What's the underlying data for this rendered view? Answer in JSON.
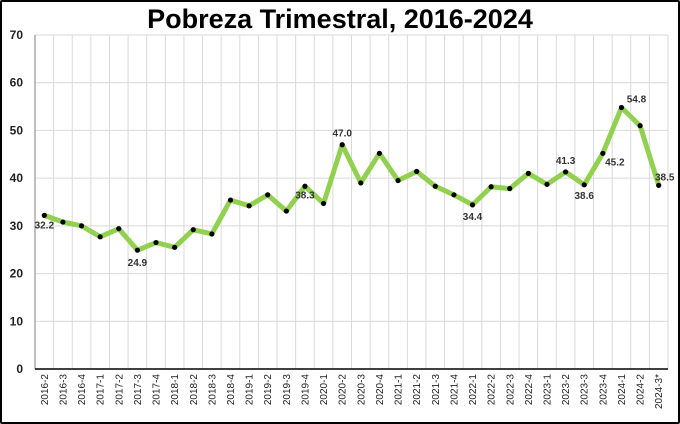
{
  "chart_data": {
    "type": "line",
    "title": "Pobreza Trimestral, 2016-2024",
    "xlabel": "",
    "ylabel": "",
    "ylim": [
      0,
      70
    ],
    "yticks": [
      0,
      10,
      20,
      30,
      40,
      50,
      60,
      70
    ],
    "grid": true,
    "legend": "none",
    "line_color": "#92d050",
    "marker_color": "#000000",
    "categories": [
      "2016-2",
      "2016-3",
      "2016-4",
      "2017-1",
      "2017-2",
      "2017-3",
      "2017-4",
      "2018-1",
      "2018-2",
      "2018-3",
      "2018-4",
      "2019-1",
      "2019-2",
      "2019-3",
      "2019-4",
      "2020-1",
      "2020-2",
      "2020-3",
      "2020-4",
      "2021-1",
      "2021-2",
      "2021-3",
      "2021-4",
      "2022-1",
      "2022-2",
      "2022-3",
      "2022-4",
      "2023-1",
      "2023-2",
      "2023-3",
      "2023-4",
      "2024-1",
      "2024-2",
      "2024-3*"
    ],
    "series": [
      {
        "values": [
          32.2,
          30.8,
          30.0,
          27.7,
          29.4,
          24.9,
          26.5,
          25.5,
          29.2,
          28.3,
          35.4,
          34.2,
          36.5,
          33.1,
          38.3,
          34.7,
          47.0,
          39.0,
          45.2,
          39.5,
          41.4,
          38.3,
          36.5,
          34.4,
          38.2,
          37.8,
          41.0,
          38.7,
          41.3,
          38.6,
          45.2,
          54.8,
          51.0,
          38.5
        ]
      }
    ],
    "data_labels": [
      {
        "index": 0,
        "text": "32.2"
      },
      {
        "index": 5,
        "text": "24.9"
      },
      {
        "index": 14,
        "text": "38.3"
      },
      {
        "index": 16,
        "text": "47.0"
      },
      {
        "index": 23,
        "text": "34.4"
      },
      {
        "index": 28,
        "text": "41.3"
      },
      {
        "index": 29,
        "text": "38.6"
      },
      {
        "index": 30,
        "text": "45.2"
      },
      {
        "index": 31,
        "text": "54.8"
      },
      {
        "index": 33,
        "text": "38.5"
      }
    ]
  }
}
